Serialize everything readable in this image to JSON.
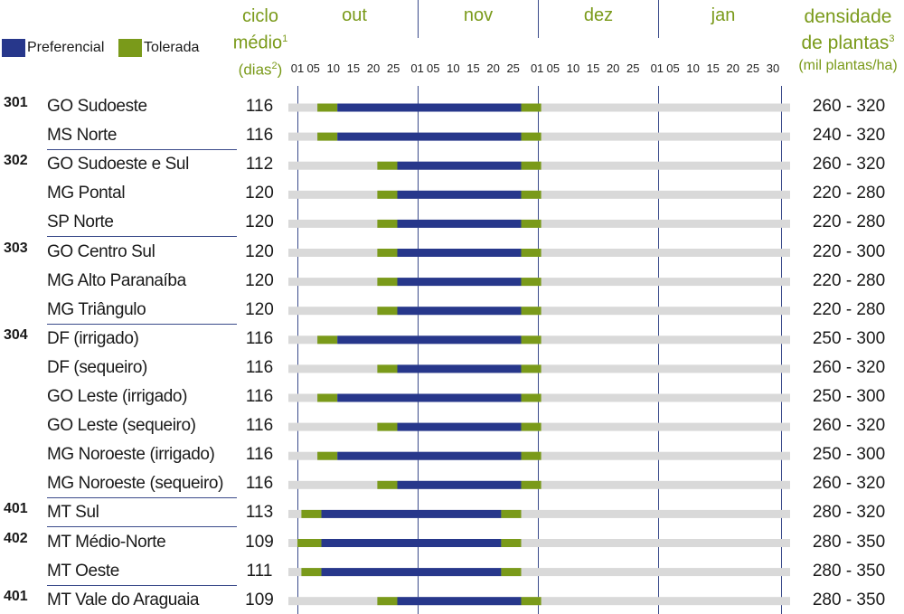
{
  "legend": [
    {
      "label": "Preferencial",
      "color": "#27378b"
    },
    {
      "label": "Tolerada",
      "color": "#7a9a1a"
    }
  ],
  "headers": {
    "ciclo_line1": "ciclo",
    "ciclo_line2": "médio",
    "ciclo_sup": "1",
    "ciclo_line3a": "(dias",
    "ciclo_sup2": "2",
    "ciclo_line3b": ")",
    "dens_line1": "densidade",
    "dens_line2": "de plantas",
    "dens_sup": "3",
    "dens_line3": "(mil plantas/ha)"
  },
  "chart_data": {
    "type": "gantt",
    "months": [
      "out",
      "nov",
      "dez",
      "jan"
    ],
    "ticks": [
      [
        "01",
        "05",
        "10",
        "15",
        "20",
        "25"
      ],
      [
        "01",
        "05",
        "10",
        "15",
        "20",
        "25"
      ],
      [
        "01",
        "05",
        "10",
        "15",
        "20",
        "25"
      ],
      [
        "01",
        "05",
        "10",
        "15",
        "20",
        "25",
        "30"
      ]
    ],
    "colors": {
      "preferencial": "#27378b",
      "tolerada": "#7a9a1a",
      "background": "#d9d9d9"
    },
    "rows": [
      {
        "group": "301",
        "region": "GO Sudoeste",
        "ciclo": "116",
        "densidade": "260 - 320",
        "tolerada1": [
          5,
          10
        ],
        "preferencial": [
          10,
          56
        ],
        "tolerada2": [
          56,
          61
        ],
        "sep_after": false
      },
      {
        "group": "",
        "region": "MS Norte",
        "ciclo": "116",
        "densidade": "240 - 320",
        "tolerada1": [
          5,
          10
        ],
        "preferencial": [
          10,
          56
        ],
        "tolerada2": [
          56,
          61
        ],
        "sep_after": true
      },
      {
        "group": "302",
        "region": "GO Sudoeste e Sul",
        "ciclo": "112",
        "densidade": "260 - 320",
        "tolerada1": [
          20,
          25
        ],
        "preferencial": [
          25,
          56
        ],
        "tolerada2": [
          56,
          61
        ],
        "sep_after": false
      },
      {
        "group": "",
        "region": "MG Pontal",
        "ciclo": "120",
        "densidade": "220 - 280",
        "tolerada1": [
          20,
          25
        ],
        "preferencial": [
          25,
          56
        ],
        "tolerada2": [
          56,
          61
        ],
        "sep_after": false
      },
      {
        "group": "",
        "region": "SP Norte",
        "ciclo": "120",
        "densidade": "220 - 280",
        "tolerada1": [
          20,
          25
        ],
        "preferencial": [
          25,
          56
        ],
        "tolerada2": [
          56,
          61
        ],
        "sep_after": true
      },
      {
        "group": "303",
        "region": "GO Centro Sul",
        "ciclo": "120",
        "densidade": "220 - 300",
        "tolerada1": [
          20,
          25
        ],
        "preferencial": [
          25,
          56
        ],
        "tolerada2": [
          56,
          61
        ],
        "sep_after": false
      },
      {
        "group": "",
        "region": "MG Alto Paranaíba",
        "ciclo": "120",
        "densidade": "220 - 280",
        "tolerada1": [
          20,
          25
        ],
        "preferencial": [
          25,
          56
        ],
        "tolerada2": [
          56,
          61
        ],
        "sep_after": false
      },
      {
        "group": "",
        "region": "MG Triângulo",
        "ciclo": "120",
        "densidade": "220 - 280",
        "tolerada1": [
          20,
          25
        ],
        "preferencial": [
          25,
          56
        ],
        "tolerada2": [
          56,
          61
        ],
        "sep_after": true
      },
      {
        "group": "304",
        "region": "DF (irrigado)",
        "ciclo": "116",
        "densidade": "250 - 300",
        "tolerada1": [
          5,
          10
        ],
        "preferencial": [
          10,
          56
        ],
        "tolerada2": [
          56,
          61
        ],
        "sep_after": false
      },
      {
        "group": "",
        "region": "DF (sequeiro)",
        "ciclo": "116",
        "densidade": "260 - 320",
        "tolerada1": [
          20,
          25
        ],
        "preferencial": [
          25,
          56
        ],
        "tolerada2": [
          56,
          61
        ],
        "sep_after": false
      },
      {
        "group": "",
        "region": "GO Leste (irrigado)",
        "ciclo": "116",
        "densidade": "250 - 300",
        "tolerada1": [
          5,
          10
        ],
        "preferencial": [
          10,
          56
        ],
        "tolerada2": [
          56,
          61
        ],
        "sep_after": false
      },
      {
        "group": "",
        "region": "GO Leste (sequeiro)",
        "ciclo": "116",
        "densidade": "260 - 320",
        "tolerada1": [
          20,
          25
        ],
        "preferencial": [
          25,
          56
        ],
        "tolerada2": [
          56,
          61
        ],
        "sep_after": false
      },
      {
        "group": "",
        "region": "MG Noroeste (irrigado)",
        "ciclo": "116",
        "densidade": "250 - 300",
        "tolerada1": [
          5,
          10
        ],
        "preferencial": [
          10,
          56
        ],
        "tolerada2": [
          56,
          61
        ],
        "sep_after": false
      },
      {
        "group": "",
        "region": "MG Noroeste (sequeiro)",
        "ciclo": "116",
        "densidade": "260 - 320",
        "tolerada1": [
          20,
          25
        ],
        "preferencial": [
          25,
          56
        ],
        "tolerada2": [
          56,
          61
        ],
        "sep_after": true
      },
      {
        "group": "401",
        "region": "MT Sul",
        "ciclo": "113",
        "densidade": "280 - 320",
        "tolerada1": [
          1,
          6
        ],
        "preferencial": [
          6,
          51
        ],
        "tolerada2": [
          51,
          56
        ],
        "sep_after": true
      },
      {
        "group": "402",
        "region": "MT Médio-Norte",
        "ciclo": "109",
        "densidade": "280 - 350",
        "tolerada1": [
          0,
          6
        ],
        "preferencial": [
          6,
          51
        ],
        "tolerada2": [
          51,
          56
        ],
        "sep_after": false
      },
      {
        "group": "",
        "region": "MT Oeste",
        "ciclo": "111",
        "densidade": "280 - 350",
        "tolerada1": [
          1,
          6
        ],
        "preferencial": [
          6,
          51
        ],
        "tolerada2": [
          51,
          56
        ],
        "sep_after": true
      },
      {
        "group": "401",
        "region": "MT Vale do Araguaia",
        "ciclo": "109",
        "densidade": "280 - 350",
        "tolerada1": [
          20,
          25
        ],
        "preferencial": [
          25,
          56
        ],
        "tolerada2": [
          56,
          61
        ],
        "sep_after": false
      }
    ]
  }
}
